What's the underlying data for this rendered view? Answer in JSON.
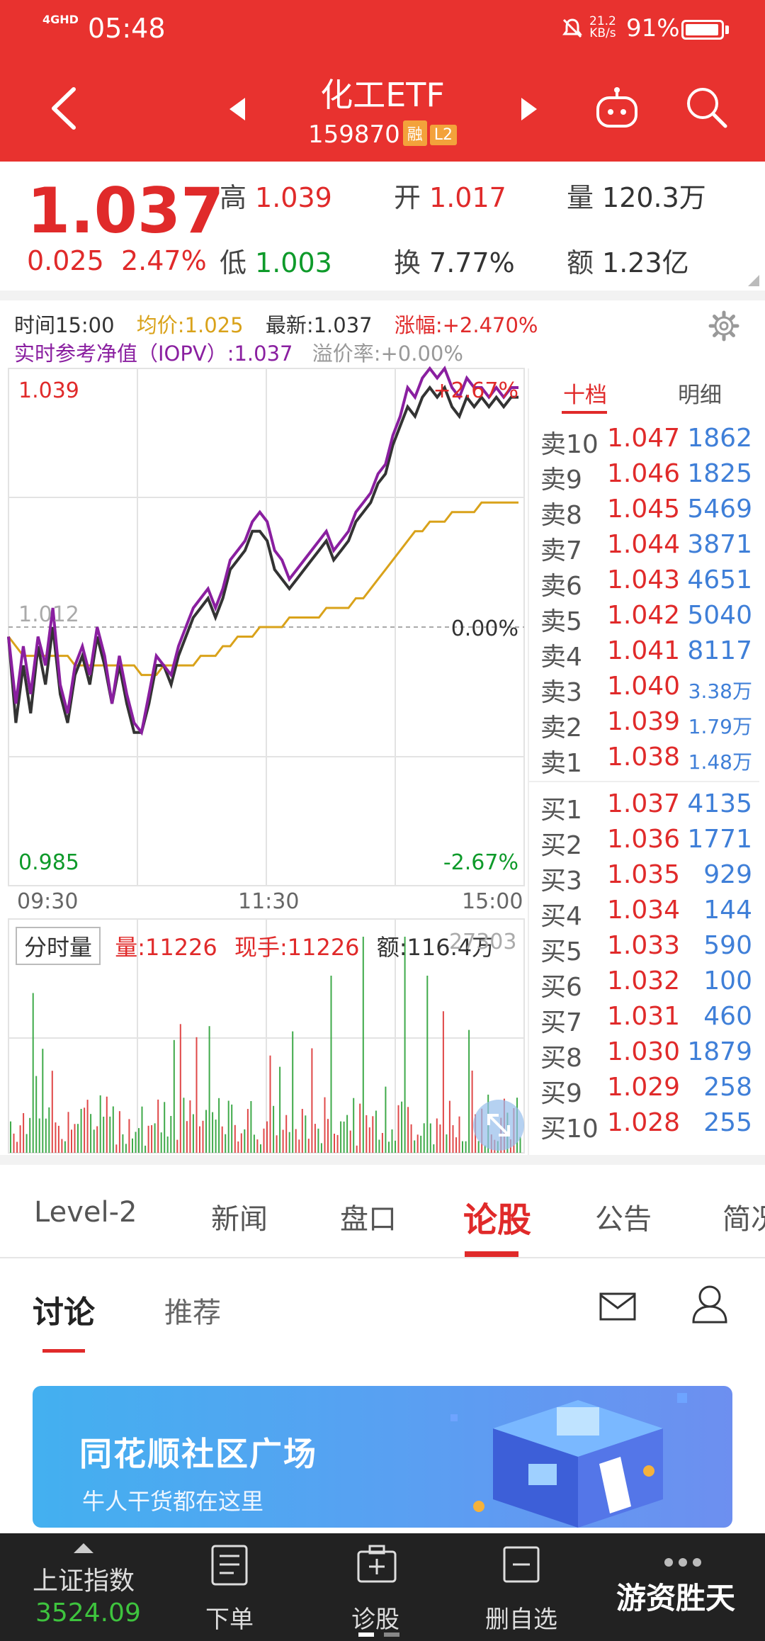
{
  "status_bar": {
    "network": "4GHD",
    "time": "05:48",
    "speed_value": "21.2",
    "speed_unit": "KB/s",
    "battery": "91%",
    "battery_level": 0.91
  },
  "header": {
    "title": "化工ETF",
    "code": "159870",
    "tag_rong": "融",
    "tag_l2": "L2"
  },
  "quote": {
    "price": "1.037",
    "change": "0.025",
    "change_pct": "2.47%",
    "high_label": "高",
    "high": "1.039",
    "open_label": "开",
    "open": "1.017",
    "volume_label": "量",
    "volume": "120.3万",
    "low_label": "低",
    "low": "1.003",
    "turnover_label": "换",
    "turnover": "7.77%",
    "amount_label": "额",
    "amount": "1.23亿"
  },
  "chart_info": {
    "time": "时间15:00",
    "avg": "均价:1.025",
    "latest": "最新:1.037",
    "change": "涨幅:+2.470%",
    "iopv": "实时参考净值（IOPV）:1.037",
    "premium": "溢价率:+0.00%"
  },
  "chart_data": {
    "type": "line",
    "y_axis_labels": {
      "top": "1.039",
      "mid": "1.012",
      "bottom": "0.985"
    },
    "pct_labels": {
      "top": "+2.67%",
      "mid": "0.00%",
      "bottom": "-2.67%"
    },
    "x_labels": [
      "09:30",
      "11:30",
      "15:00"
    ],
    "ylim": [
      0.985,
      1.039
    ],
    "prev_close": 1.012,
    "series": [
      {
        "color": "#8a1fa0",
        "values": [
          1.011,
          1.004,
          1.01,
          1.005,
          1.011,
          1.008,
          1.014,
          1.006,
          1.003,
          1.008,
          1.01,
          1.007,
          1.012,
          1.009,
          1.004,
          1.009,
          1.005,
          1.002,
          1.001,
          1.005,
          1.009,
          1.008,
          1.007,
          1.01,
          1.012,
          1.014,
          1.015,
          1.016,
          1.014,
          1.016,
          1.019,
          1.02,
          1.021,
          1.023,
          1.024,
          1.023,
          1.02,
          1.019,
          1.017,
          1.018,
          1.019,
          1.02,
          1.021,
          1.022,
          1.02,
          1.021,
          1.022,
          1.024,
          1.025,
          1.026,
          1.028,
          1.029,
          1.032,
          1.034,
          1.037,
          1.036,
          1.038,
          1.039,
          1.038,
          1.039,
          1.037,
          1.036,
          1.038,
          1.037,
          1.037,
          1.036,
          1.037,
          1.036,
          1.037,
          1.037
        ]
      },
      {
        "color": "#333333",
        "values": [
          1.011,
          1.002,
          1.008,
          1.003,
          1.01,
          1.006,
          1.012,
          1.005,
          1.002,
          1.007,
          1.009,
          1.006,
          1.011,
          1.008,
          1.004,
          1.008,
          1.004,
          1.001,
          1.001,
          1.004,
          1.008,
          1.008,
          1.006,
          1.009,
          1.011,
          1.013,
          1.014,
          1.015,
          1.013,
          1.015,
          1.018,
          1.019,
          1.02,
          1.022,
          1.022,
          1.021,
          1.018,
          1.017,
          1.016,
          1.017,
          1.018,
          1.019,
          1.02,
          1.021,
          1.019,
          1.02,
          1.021,
          1.023,
          1.024,
          1.025,
          1.027,
          1.028,
          1.031,
          1.033,
          1.035,
          1.034,
          1.036,
          1.037,
          1.036,
          1.037,
          1.035,
          1.034,
          1.036,
          1.035,
          1.036,
          1.035,
          1.036,
          1.035,
          1.036,
          1.036
        ]
      },
      {
        "color": "#d9a21a",
        "values": [
          1.011,
          1.01,
          1.009,
          1.009,
          1.009,
          1.009,
          1.009,
          1.009,
          1.009,
          1.008,
          1.008,
          1.008,
          1.008,
          1.008,
          1.008,
          1.008,
          1.008,
          1.008,
          1.007,
          1.007,
          1.007,
          1.008,
          1.008,
          1.008,
          1.008,
          1.008,
          1.009,
          1.009,
          1.009,
          1.01,
          1.01,
          1.011,
          1.011,
          1.011,
          1.012,
          1.012,
          1.012,
          1.012,
          1.013,
          1.013,
          1.013,
          1.013,
          1.013,
          1.014,
          1.014,
          1.014,
          1.014,
          1.015,
          1.015,
          1.016,
          1.017,
          1.018,
          1.019,
          1.02,
          1.021,
          1.022,
          1.022,
          1.023,
          1.023,
          1.023,
          1.024,
          1.024,
          1.024,
          1.024,
          1.025,
          1.025,
          1.025,
          1.025,
          1.025,
          1.025
        ]
      }
    ]
  },
  "volume": {
    "tab": "分时量",
    "vol": "量:11226",
    "hand": "现手:11226",
    "amount": "额:116.4万",
    "max": "27303"
  },
  "order_book": {
    "tab_ten": "十档",
    "tab_detail": "明细",
    "sells": [
      {
        "label": "卖10",
        "price": "1.047",
        "vol": "1862"
      },
      {
        "label": "卖9",
        "price": "1.046",
        "vol": "1825"
      },
      {
        "label": "卖8",
        "price": "1.045",
        "vol": "5469"
      },
      {
        "label": "卖7",
        "price": "1.044",
        "vol": "3871"
      },
      {
        "label": "卖6",
        "price": "1.043",
        "vol": "4651"
      },
      {
        "label": "卖5",
        "price": "1.042",
        "vol": "5040"
      },
      {
        "label": "卖4",
        "price": "1.041",
        "vol": "8117"
      },
      {
        "label": "卖3",
        "price": "1.040",
        "vol": "3.38万"
      },
      {
        "label": "卖2",
        "price": "1.039",
        "vol": "1.79万"
      },
      {
        "label": "卖1",
        "price": "1.038",
        "vol": "1.48万"
      }
    ],
    "buys": [
      {
        "label": "买1",
        "price": "1.037",
        "vol": "4135"
      },
      {
        "label": "买2",
        "price": "1.036",
        "vol": "1771"
      },
      {
        "label": "买3",
        "price": "1.035",
        "vol": "929"
      },
      {
        "label": "买4",
        "price": "1.034",
        "vol": "144"
      },
      {
        "label": "买5",
        "price": "1.033",
        "vol": "590"
      },
      {
        "label": "买6",
        "price": "1.032",
        "vol": "100"
      },
      {
        "label": "买7",
        "price": "1.031",
        "vol": "460"
      },
      {
        "label": "买8",
        "price": "1.030",
        "vol": "1879"
      },
      {
        "label": "买9",
        "price": "1.029",
        "vol": "258"
      },
      {
        "label": "买10",
        "price": "1.028",
        "vol": "255"
      }
    ]
  },
  "nav_tabs": [
    "Level-2",
    "新闻",
    "盘口",
    "论股",
    "公告",
    "简况"
  ],
  "nav_active": "论股",
  "sub_tabs": {
    "discuss": "讨论",
    "recommend": "推荐"
  },
  "banner": {
    "title": "同花顺社区广场",
    "subtitle": "牛人干货都在这里"
  },
  "bottom_bar": {
    "index_name": "上证指数",
    "index_value": "3524.09",
    "order": "下单",
    "diagnose": "诊股",
    "remove": "删自选",
    "watermark": "游资胜天"
  },
  "colors": {
    "header": "#e8322f",
    "up": "#e02a2a",
    "down": "#0e9a2a",
    "accent": "#3f7fd8"
  }
}
